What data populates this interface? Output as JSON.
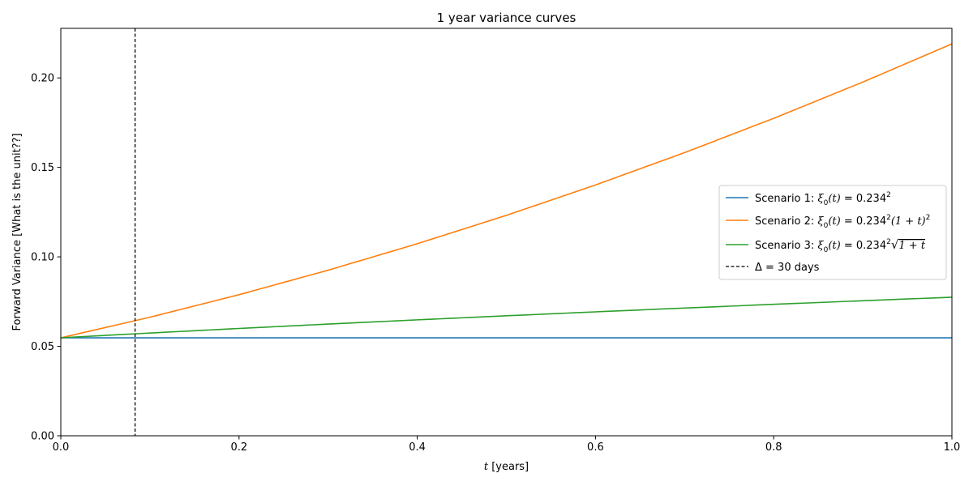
{
  "chart_data": {
    "type": "line",
    "title": "1 year variance curves",
    "xlabel": {
      "var": "t",
      "rest": " [years]"
    },
    "ylabel": "Forward Variance [What is the unit??]",
    "xlim": [
      0,
      1
    ],
    "ylim": [
      0,
      0.2277
    ],
    "xticks": [
      0.0,
      0.2,
      0.4,
      0.6,
      0.8,
      1.0
    ],
    "xtick_labels": [
      "0.0",
      "0.2",
      "0.4",
      "0.6",
      "0.8",
      "1.0"
    ],
    "yticks": [
      0.0,
      0.05,
      0.1,
      0.15,
      0.2
    ],
    "ytick_labels": [
      "0.00",
      "0.05",
      "0.10",
      "0.15",
      "0.20"
    ],
    "grid": false,
    "legend_placement": "center-right",
    "series": [
      {
        "name": "Scenario 1: ξ0(t) = 0.234^2",
        "color": "#1f77b4",
        "x": [
          0.0,
          0.1,
          0.2,
          0.3,
          0.4,
          0.5,
          0.6,
          0.7,
          0.8,
          0.9,
          1.0
        ],
        "y": [
          0.054756,
          0.054756,
          0.054756,
          0.054756,
          0.054756,
          0.054756,
          0.054756,
          0.054756,
          0.054756,
          0.054756,
          0.054756
        ]
      },
      {
        "name": "Scenario 2: ξ0(t) = 0.234^2(1+t)^2",
        "color": "#ff7f0e",
        "x": [
          0.0,
          0.1,
          0.2,
          0.3,
          0.4,
          0.5,
          0.6,
          0.7,
          0.8,
          0.9,
          1.0
        ],
        "y": [
          0.054756,
          0.066255,
          0.078849,
          0.092538,
          0.107322,
          0.123201,
          0.140175,
          0.158245,
          0.177409,
          0.197669,
          0.219024
        ]
      },
      {
        "name": "Scenario 3: ξ0(t) = 0.234^2√(1+t)",
        "color": "#2ca02c",
        "x": [
          0.0,
          0.1,
          0.2,
          0.3,
          0.4,
          0.5,
          0.6,
          0.7,
          0.8,
          0.9,
          1.0
        ],
        "y": [
          0.054756,
          0.057428,
          0.059982,
          0.062432,
          0.064788,
          0.067062,
          0.069261,
          0.071392,
          0.073462,
          0.075475,
          0.077437
        ]
      }
    ],
    "vline": {
      "name": "Δ = 30 days",
      "x": 0.08333,
      "color": "#000000",
      "style": "dashed"
    },
    "legend": [
      {
        "prefix": "Scenario 1: ",
        "color": "#1f77b4",
        "style": "solid"
      },
      {
        "prefix": "Scenario 2: ",
        "color": "#ff7f0e",
        "style": "solid"
      },
      {
        "prefix": "Scenario 3: ",
        "color": "#2ca02c",
        "style": "solid"
      },
      {
        "prefix": "Δ = 30 days",
        "color": "#000000",
        "style": "dashed"
      }
    ],
    "formula": {
      "xi": "ξ",
      "sub0": "0",
      "arg": "(t)",
      "eq": " = 0.234",
      "sup2": "2",
      "s2_tail": "(1 + t)",
      "s3_root": "1 + t"
    }
  }
}
